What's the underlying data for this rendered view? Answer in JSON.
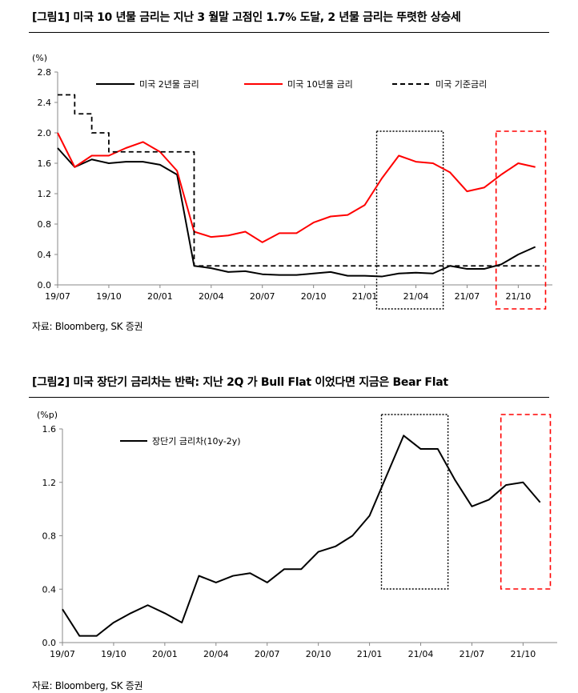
{
  "figure1": {
    "title": "[그림1] 미국 10 년물 금리는 지난 3 월말 고점인 1.7% 도달, 2 년물 금리는 뚜렷한 상승세",
    "source": "자료: Bloomberg, SK 증권",
    "chart_data": {
      "type": "line",
      "unit_label": "(%)",
      "ylim": [
        0,
        2.8
      ],
      "yticks": [
        "0.0",
        "0.4",
        "0.8",
        "1.2",
        "1.6",
        "2.0",
        "2.4",
        "2.8"
      ],
      "xticks": [
        "19/07",
        "19/10",
        "20/01",
        "20/04",
        "20/07",
        "20/10",
        "21/01",
        "21/04",
        "21/07",
        "21/10"
      ],
      "legend_position": "top",
      "series": [
        {
          "name": "미국 2년물 금리",
          "color": "#000000",
          "style": "solid",
          "points": [
            [
              "19/07",
              1.8
            ],
            [
              "19/08",
              1.55
            ],
            [
              "19/09",
              1.65
            ],
            [
              "19/10",
              1.6
            ],
            [
              "19/11",
              1.62
            ],
            [
              "19/12",
              1.62
            ],
            [
              "20/01",
              1.58
            ],
            [
              "20/02",
              1.45
            ],
            [
              "20/03",
              0.25
            ],
            [
              "20/04",
              0.22
            ],
            [
              "20/05",
              0.17
            ],
            [
              "20/06",
              0.18
            ],
            [
              "20/07",
              0.14
            ],
            [
              "20/08",
              0.13
            ],
            [
              "20/09",
              0.13
            ],
            [
              "20/10",
              0.15
            ],
            [
              "20/11",
              0.17
            ],
            [
              "20/12",
              0.12
            ],
            [
              "21/01",
              0.12
            ],
            [
              "21/02",
              0.11
            ],
            [
              "21/03",
              0.15
            ],
            [
              "21/04",
              0.16
            ],
            [
              "21/05",
              0.15
            ],
            [
              "21/06",
              0.25
            ],
            [
              "21/07",
              0.21
            ],
            [
              "21/08",
              0.21
            ],
            [
              "21/09",
              0.27
            ],
            [
              "21/10",
              0.4
            ],
            [
              "21/11",
              0.5
            ]
          ]
        },
        {
          "name": "미국 10년물 금리",
          "color": "#ff0000",
          "style": "solid",
          "points": [
            [
              "19/07",
              2.0
            ],
            [
              "19/08",
              1.55
            ],
            [
              "19/09",
              1.7
            ],
            [
              "19/10",
              1.7
            ],
            [
              "19/11",
              1.8
            ],
            [
              "19/12",
              1.88
            ],
            [
              "20/01",
              1.75
            ],
            [
              "20/02",
              1.5
            ],
            [
              "20/03",
              0.7
            ],
            [
              "20/04",
              0.63
            ],
            [
              "20/05",
              0.65
            ],
            [
              "20/06",
              0.7
            ],
            [
              "20/07",
              0.56
            ],
            [
              "20/08",
              0.68
            ],
            [
              "20/09",
              0.68
            ],
            [
              "20/10",
              0.82
            ],
            [
              "20/11",
              0.9
            ],
            [
              "20/12",
              0.92
            ],
            [
              "21/01",
              1.05
            ],
            [
              "21/02",
              1.4
            ],
            [
              "21/03",
              1.7
            ],
            [
              "21/04",
              1.62
            ],
            [
              "21/05",
              1.6
            ],
            [
              "21/06",
              1.48
            ],
            [
              "21/07",
              1.23
            ],
            [
              "21/08",
              1.28
            ],
            [
              "21/09",
              1.45
            ],
            [
              "21/10",
              1.6
            ],
            [
              "21/11",
              1.55
            ]
          ]
        },
        {
          "name": "미국 기준금리",
          "color": "#000000",
          "style": "dashed",
          "points": [
            [
              "19/07",
              2.5
            ],
            [
              "19/08",
              2.25
            ],
            [
              "19/09",
              2.0
            ],
            [
              "19/10",
              1.75
            ],
            [
              "19/11",
              1.75
            ],
            [
              "19/12",
              1.75
            ],
            [
              "20/01",
              1.75
            ],
            [
              "20/02",
              1.75
            ],
            [
              "20/03",
              0.25
            ],
            [
              "20/04",
              0.25
            ],
            [
              "20/05",
              0.25
            ],
            [
              "20/06",
              0.25
            ],
            [
              "20/07",
              0.25
            ],
            [
              "20/08",
              0.25
            ],
            [
              "20/09",
              0.25
            ],
            [
              "20/10",
              0.25
            ],
            [
              "20/11",
              0.25
            ],
            [
              "20/12",
              0.25
            ],
            [
              "21/01",
              0.25
            ],
            [
              "21/02",
              0.25
            ],
            [
              "21/03",
              0.25
            ],
            [
              "21/04",
              0.25
            ],
            [
              "21/05",
              0.25
            ],
            [
              "21/06",
              0.25
            ],
            [
              "21/07",
              0.25
            ],
            [
              "21/08",
              0.25
            ],
            [
              "21/09",
              0.25
            ],
            [
              "21/10",
              0.25
            ],
            [
              "21/11",
              0.25
            ]
          ]
        }
      ],
      "highlight_boxes": [
        {
          "x_from": "21/02",
          "x_to": "21/05",
          "style": "dotted",
          "color": "#000000"
        },
        {
          "x_from": "21/09",
          "x_to": "21/11",
          "style": "dashed",
          "color": "#ff0000"
        }
      ]
    }
  },
  "figure2": {
    "title": "[그림2] 미국 장단기 금리차는 반락: 지난 2Q 가 Bull Flat 이었다면 지금은 Bear Flat",
    "source": "자료: Bloomberg, SK 증권",
    "chart_data": {
      "type": "line",
      "unit_label": "(%p)",
      "ylim": [
        0,
        1.6
      ],
      "yticks": [
        "0.0",
        "0.4",
        "0.8",
        "1.2",
        "1.6"
      ],
      "xticks": [
        "19/07",
        "19/10",
        "20/01",
        "20/04",
        "20/07",
        "20/10",
        "21/01",
        "21/04",
        "21/07",
        "21/10"
      ],
      "legend_position": "top-left",
      "series": [
        {
          "name": "장단기 금리차(10y-2y)",
          "color": "#000000",
          "style": "solid",
          "points": [
            [
              "19/07",
              0.25
            ],
            [
              "19/08",
              0.05
            ],
            [
              "19/09",
              0.05
            ],
            [
              "19/10",
              0.15
            ],
            [
              "19/11",
              0.22
            ],
            [
              "19/12",
              0.28
            ],
            [
              "20/01",
              0.22
            ],
            [
              "20/02",
              0.15
            ],
            [
              "20/03",
              0.5
            ],
            [
              "20/04",
              0.45
            ],
            [
              "20/05",
              0.5
            ],
            [
              "20/06",
              0.52
            ],
            [
              "20/07",
              0.45
            ],
            [
              "20/08",
              0.55
            ],
            [
              "20/09",
              0.55
            ],
            [
              "20/10",
              0.68
            ],
            [
              "20/11",
              0.72
            ],
            [
              "20/12",
              0.8
            ],
            [
              "21/01",
              0.95
            ],
            [
              "21/02",
              1.25
            ],
            [
              "21/03",
              1.55
            ],
            [
              "21/04",
              1.45
            ],
            [
              "21/05",
              1.45
            ],
            [
              "21/06",
              1.22
            ],
            [
              "21/07",
              1.02
            ],
            [
              "21/08",
              1.07
            ],
            [
              "21/09",
              1.18
            ],
            [
              "21/10",
              1.2
            ],
            [
              "21/11",
              1.05
            ]
          ]
        }
      ],
      "highlight_boxes": [
        {
          "x_from": "21/02",
          "x_to": "21/05",
          "style": "dotted",
          "color": "#000000"
        },
        {
          "x_from": "21/09",
          "x_to": "21/11",
          "style": "dashed",
          "color": "#ff0000"
        }
      ]
    }
  }
}
